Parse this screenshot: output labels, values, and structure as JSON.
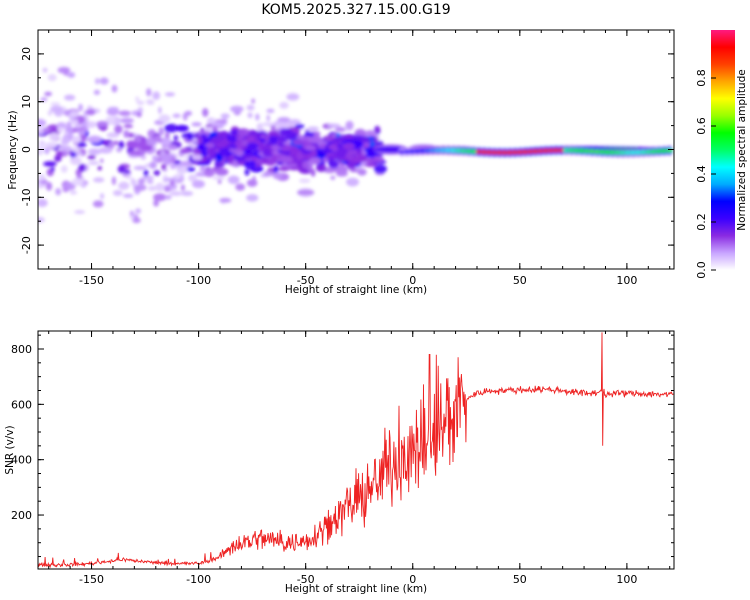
{
  "chart_data": [
    {
      "type": "heatmap",
      "title": "KOM5.2025.327.15.00.G19",
      "xlabel": "Height of straight line (km)",
      "ylabel": "Frequency (Hz)",
      "xlim": [
        -175,
        122
      ],
      "ylim": [
        -25,
        25
      ],
      "xticks": [
        -150,
        -100,
        -50,
        0,
        50,
        100
      ],
      "xtick_labels": [
        "-150",
        "-100",
        "-50",
        "0",
        "50",
        "100"
      ],
      "yticks": [
        -20,
        -10,
        0,
        10,
        20
      ],
      "ytick_labels": [
        "-20",
        "-10",
        "0",
        "10",
        "20"
      ],
      "colorbar": {
        "label": "Normalized spectral amplitude",
        "range": [
          0,
          1
        ],
        "ticks": [
          0.0,
          0.2,
          0.4,
          0.6,
          0.8
        ],
        "tick_labels": [
          "0.0",
          "0.2",
          "0.4",
          "0.6",
          "0.8"
        ],
        "colors": [
          "#ffffff",
          "#c8a4ff",
          "#8a2be2",
          "#3a00ff",
          "#0000ff",
          "#00aaff",
          "#00ffff",
          "#00ff66",
          "#00ff00",
          "#99ff00",
          "#ffff00",
          "#ffa500",
          "#ff4000",
          "#ff0000",
          "#ff1a80"
        ]
      },
      "blobs": [
        {
          "x": 85,
          "y": 0,
          "w": 70,
          "h": 0.8,
          "a": 0.55
        },
        {
          "x": 45,
          "y": -0.5,
          "w": 40,
          "h": 0.7,
          "a": 0.9
        },
        {
          "x": 112,
          "y": -0.2,
          "w": 18,
          "h": 0.8,
          "a": 0.35
        },
        {
          "x": 22,
          "y": -0.2,
          "w": 18,
          "h": 1.0,
          "a": 0.4
        },
        {
          "x": 5,
          "y": 0.2,
          "w": 14,
          "h": 1.2,
          "a": 0.15
        },
        {
          "x": -10,
          "y": 0,
          "w": 16,
          "h": 1.4,
          "a": 0.2
        },
        {
          "x": -30,
          "y": -1,
          "w": 22,
          "h": 6,
          "a": 0.12
        },
        {
          "x": -55,
          "y": -2,
          "w": 25,
          "h": 8,
          "a": 0.1
        },
        {
          "x": -80,
          "y": 2,
          "w": 30,
          "h": 7,
          "a": 0.12
        },
        {
          "x": -56,
          "y": 11,
          "w": 6,
          "h": 1.2,
          "a": 0.06
        },
        {
          "x": -50,
          "y": -9,
          "w": 8,
          "h": 1.2,
          "a": 0.09
        },
        {
          "x": -120,
          "y": 0,
          "w": 50,
          "h": 10,
          "a": 0.05
        },
        {
          "x": -160,
          "y": 5,
          "w": 30,
          "h": 30,
          "a": 0.03
        }
      ]
    },
    {
      "type": "line",
      "title": "",
      "xlabel": "Height of straight line (km)",
      "ylabel": "SNR (v/v)",
      "xlim": [
        -175,
        122
      ],
      "ylim": [
        5,
        865
      ],
      "xticks": [
        -150,
        -100,
        -50,
        0,
        50,
        100
      ],
      "xtick_labels": [
        "-150",
        "-100",
        "-50",
        "0",
        "50",
        "100"
      ],
      "yticks": [
        200,
        400,
        600,
        800
      ],
      "ytick_labels": [
        "200",
        "400",
        "600",
        "800"
      ],
      "color": "#ee2222",
      "series": [
        {
          "name": "SNR",
          "x": [
            -175,
            -165,
            -155,
            -145,
            -140,
            -135,
            -130,
            -120,
            -110,
            -100,
            -95,
            -90,
            -85,
            -80,
            -75,
            -70,
            -65,
            -60,
            -55,
            -50,
            -45,
            -40,
            -35,
            -30,
            -25,
            -20,
            -15,
            -12,
            -10,
            -5,
            0,
            5,
            8,
            10,
            15,
            20,
            25,
            30,
            35,
            40,
            50,
            60,
            70,
            80,
            85,
            88,
            90,
            95,
            100,
            110,
            122
          ],
          "y": [
            20,
            20,
            22,
            30,
            35,
            40,
            35,
            28,
            25,
            25,
            35,
            50,
            85,
            100,
            110,
            115,
            110,
            100,
            100,
            110,
            130,
            170,
            200,
            230,
            250,
            290,
            330,
            380,
            400,
            420,
            420,
            450,
            440,
            480,
            540,
            590,
            620,
            640,
            648,
            650,
            652,
            655,
            650,
            640,
            640,
            650,
            635,
            640,
            640,
            638,
            635
          ]
        }
      ]
    }
  ]
}
